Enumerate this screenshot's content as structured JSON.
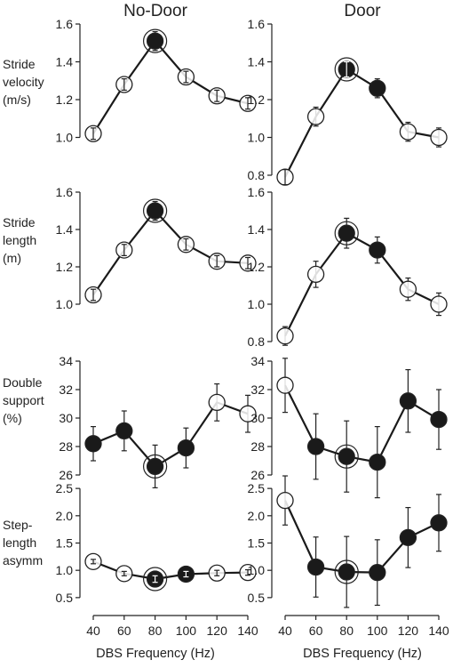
{
  "figure": {
    "columns": [
      "No-Door",
      "Door"
    ],
    "row_labels": [
      "Stride\nvelocity\n(m/s)",
      "Stride\nlength\n(m)",
      "Double\nsupport\n(%)",
      "Step-\nlength\nasymm"
    ],
    "xlabel": "DBS Frequency (Hz)"
  },
  "chart_data": [
    {
      "type": "line",
      "panel": "No-Door / Stride velocity",
      "x": [
        40,
        60,
        80,
        100,
        120,
        140
      ],
      "xlim": [
        40,
        140
      ],
      "y": [
        1.02,
        1.28,
        1.51,
        1.32,
        1.22,
        1.18
      ],
      "err": [
        0.03,
        0.03,
        0.05,
        0.03,
        0.03,
        0.03
      ],
      "filled": [
        false,
        false,
        true,
        false,
        false,
        false
      ],
      "ring": 80,
      "ylim": [
        0.8,
        1.6
      ],
      "yticks": [
        1.0,
        1.2,
        1.4,
        1.6
      ],
      "ytick_labels": [
        "1.0",
        "1.2",
        "1.4",
        "1.6"
      ]
    },
    {
      "type": "line",
      "panel": "Door / Stride velocity",
      "x": [
        40,
        60,
        80,
        100,
        120,
        140
      ],
      "xlim": [
        40,
        140
      ],
      "y": [
        0.79,
        1.11,
        1.36,
        1.26,
        1.03,
        1.0
      ],
      "err": [
        0.04,
        0.05,
        0.04,
        0.05,
        0.05,
        0.05
      ],
      "filled": [
        false,
        false,
        true,
        true,
        false,
        false
      ],
      "ring": 80,
      "ylim": [
        0.8,
        1.6
      ],
      "yticks": [
        0.8,
        1.0,
        1.2,
        1.4,
        1.6
      ],
      "ytick_labels": [
        "0.8",
        "1.0",
        "1.2",
        "1.4",
        "1.6"
      ]
    },
    {
      "type": "line",
      "panel": "No-Door / Stride length",
      "x": [
        40,
        60,
        80,
        100,
        120,
        140
      ],
      "xlim": [
        40,
        140
      ],
      "y": [
        1.05,
        1.29,
        1.5,
        1.32,
        1.23,
        1.22
      ],
      "err": [
        0.03,
        0.03,
        0.05,
        0.03,
        0.03,
        0.03
      ],
      "filled": [
        false,
        false,
        true,
        false,
        false,
        false
      ],
      "ring": 80,
      "ylim": [
        0.8,
        1.6
      ],
      "yticks": [
        1.0,
        1.2,
        1.4,
        1.6
      ],
      "ytick_labels": [
        "1.0",
        "1.2",
        "1.4",
        "1.6"
      ]
    },
    {
      "type": "line",
      "panel": "Door / Stride length",
      "x": [
        40,
        60,
        80,
        100,
        120,
        140
      ],
      "xlim": [
        40,
        140
      ],
      "y": [
        0.83,
        1.16,
        1.38,
        1.29,
        1.08,
        1.0
      ],
      "err": [
        0.05,
        0.07,
        0.08,
        0.07,
        0.06,
        0.06
      ],
      "filled": [
        false,
        false,
        true,
        true,
        false,
        false
      ],
      "ring": 80,
      "ylim": [
        0.8,
        1.6
      ],
      "yticks": [
        0.8,
        1.0,
        1.2,
        1.4,
        1.6
      ],
      "ytick_labels": [
        "0.8",
        "1.0",
        "1.2",
        "1.4",
        "1.6"
      ]
    },
    {
      "type": "line",
      "panel": "No-Door / Double support",
      "x": [
        40,
        60,
        80,
        100,
        120,
        140
      ],
      "xlim": [
        40,
        140
      ],
      "y": [
        28.2,
        29.1,
        26.6,
        27.9,
        31.1,
        30.3
      ],
      "err": [
        1.2,
        1.4,
        1.5,
        1.4,
        1.3,
        1.3
      ],
      "filled": [
        true,
        true,
        true,
        true,
        false,
        false
      ],
      "ring": 80,
      "ylim": [
        26,
        34
      ],
      "yticks": [
        26,
        28,
        30,
        32,
        34
      ],
      "ytick_labels": [
        "26",
        "28",
        "30",
        "32",
        "34"
      ]
    },
    {
      "type": "line",
      "panel": "Door / Double support",
      "x": [
        40,
        60,
        80,
        100,
        120,
        140
      ],
      "xlim": [
        40,
        140
      ],
      "y": [
        32.3,
        28.0,
        27.3,
        26.9,
        31.2,
        29.9
      ],
      "err": [
        1.9,
        2.3,
        2.5,
        2.5,
        2.2,
        2.1
      ],
      "filled": [
        false,
        true,
        true,
        true,
        true,
        true
      ],
      "ring": 80,
      "ylim": [
        26,
        34
      ],
      "yticks": [
        26,
        28,
        30,
        32,
        34
      ],
      "ytick_labels": [
        "26",
        "28",
        "30",
        "32",
        "34"
      ]
    },
    {
      "type": "line",
      "panel": "No-Door / Step-length asymm",
      "x": [
        40,
        60,
        80,
        100,
        120,
        140
      ],
      "xlim": [
        40,
        140
      ],
      "y": [
        1.16,
        0.94,
        0.84,
        0.93,
        0.95,
        0.96
      ],
      "err": [
        0.04,
        0.04,
        0.06,
        0.05,
        0.05,
        0.05
      ],
      "filled": [
        false,
        false,
        true,
        true,
        false,
        false
      ],
      "ring": 80,
      "ylim": [
        0.4,
        2.6
      ],
      "yticks": [
        0.5,
        1.0,
        1.5,
        2.0,
        2.5
      ],
      "ytick_labels": [
        "0.5",
        "1.0",
        "1.5",
        "2.0",
        "2.5"
      ]
    },
    {
      "type": "line",
      "panel": "Door / Step-length asymm",
      "x": [
        40,
        60,
        80,
        100,
        120,
        140
      ],
      "xlim": [
        40,
        140
      ],
      "y": [
        2.28,
        1.06,
        0.97,
        0.96,
        1.6,
        1.87
      ],
      "err": [
        0.45,
        0.55,
        0.65,
        0.6,
        0.55,
        0.52
      ],
      "filled": [
        false,
        true,
        true,
        true,
        true,
        true
      ],
      "ring": 80,
      "ylim": [
        0.4,
        2.6
      ],
      "yticks": [
        0.5,
        1.0,
        1.5,
        2.0,
        2.5
      ],
      "ytick_labels": [
        "0.5",
        "1.0",
        "1.5",
        "2.0",
        "2.5"
      ]
    }
  ],
  "x_axis": {
    "ticks": [
      40,
      60,
      80,
      100,
      120,
      140
    ],
    "tick_labels": [
      "40",
      "60",
      "80",
      "100",
      "120",
      "140"
    ]
  }
}
